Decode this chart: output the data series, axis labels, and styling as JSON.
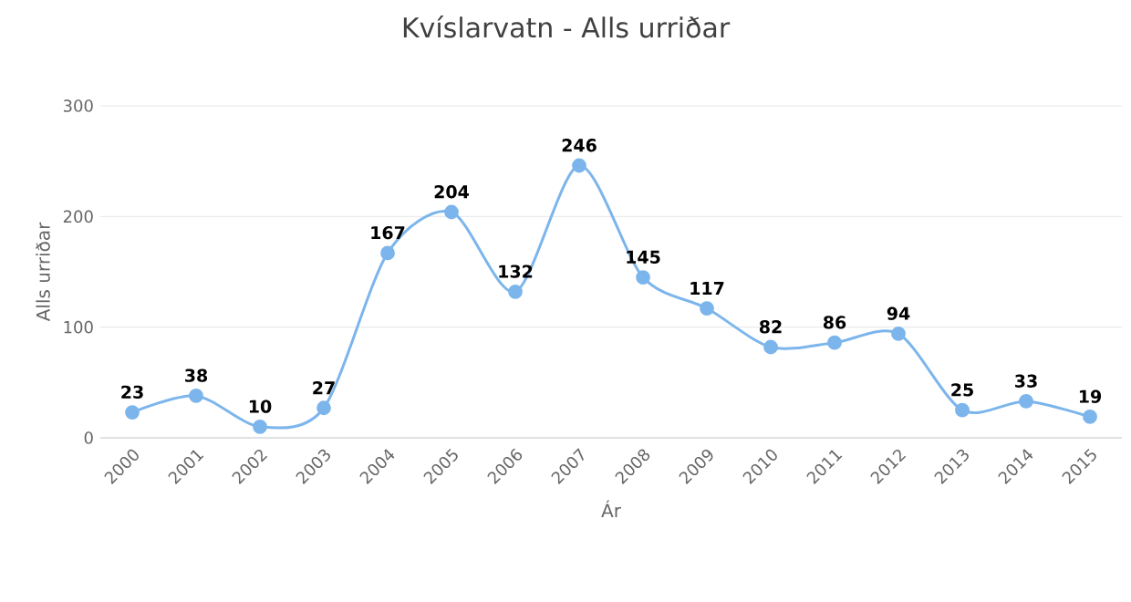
{
  "chart_data": {
    "type": "line",
    "title": "Kvíslarvatn - Alls urriðar",
    "xlabel": "Ár",
    "ylabel": "Alls urriðar",
    "categories": [
      "2000",
      "2001",
      "2002",
      "2003",
      "2004",
      "2005",
      "2006",
      "2007",
      "2008",
      "2009",
      "2010",
      "2011",
      "2012",
      "2013",
      "2014",
      "2015"
    ],
    "values": [
      23,
      38,
      10,
      27,
      167,
      204,
      132,
      246,
      145,
      117,
      82,
      86,
      94,
      25,
      33,
      19
    ],
    "color": "#7cb5ec",
    "ylim": [
      0,
      300
    ],
    "yticks": [
      0,
      100,
      200,
      300
    ],
    "grid": "y",
    "marker": "circle",
    "line_style": "solid",
    "data_labels": true
  }
}
